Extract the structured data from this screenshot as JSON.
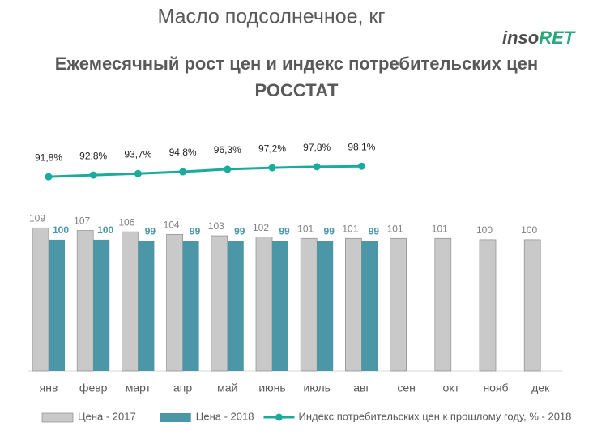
{
  "chart_data": {
    "type": "bar",
    "title": "Масло подсолнечное, кг",
    "subtitle": [
      "Ежемесячный рост цен и индекс потребительских цен",
      "РОССТАТ"
    ],
    "logo": [
      "inso",
      "RET"
    ],
    "categories": [
      "янв",
      "февр",
      "март",
      "апр",
      "май",
      "июнь",
      "июль",
      "авг",
      "сен",
      "окт",
      "нояб",
      "дек"
    ],
    "series": [
      {
        "name": "Цена  - 2017",
        "color": "#c9c9c9",
        "values": [
          109,
          107,
          106,
          104,
          103,
          102,
          101,
          101,
          101,
          101,
          100,
          100
        ]
      },
      {
        "name": "Цена  - 2018",
        "color": "#4b97a8",
        "values": [
          100,
          100,
          99,
          99,
          99,
          99,
          99,
          99,
          null,
          null,
          null,
          null
        ]
      },
      {
        "name": "Индекс потребительских цен к прошлому году, % - 2018",
        "type": "line",
        "axis": "y2",
        "color": "#1bab9c",
        "values": [
          91.8,
          92.8,
          93.7,
          94.8,
          96.3,
          97.2,
          97.8,
          98.1,
          null,
          null,
          null,
          null
        ],
        "value_labels": [
          "91,8%",
          "92,8%",
          "93,7%",
          "94,8%",
          "96,3%",
          "97,2%",
          "97,8%",
          "98,1%",
          null,
          null,
          null,
          null
        ]
      }
    ],
    "ylim": [
      0,
      190
    ],
    "y2lim": [
      -25,
      125
    ],
    "legend": "bottom"
  }
}
